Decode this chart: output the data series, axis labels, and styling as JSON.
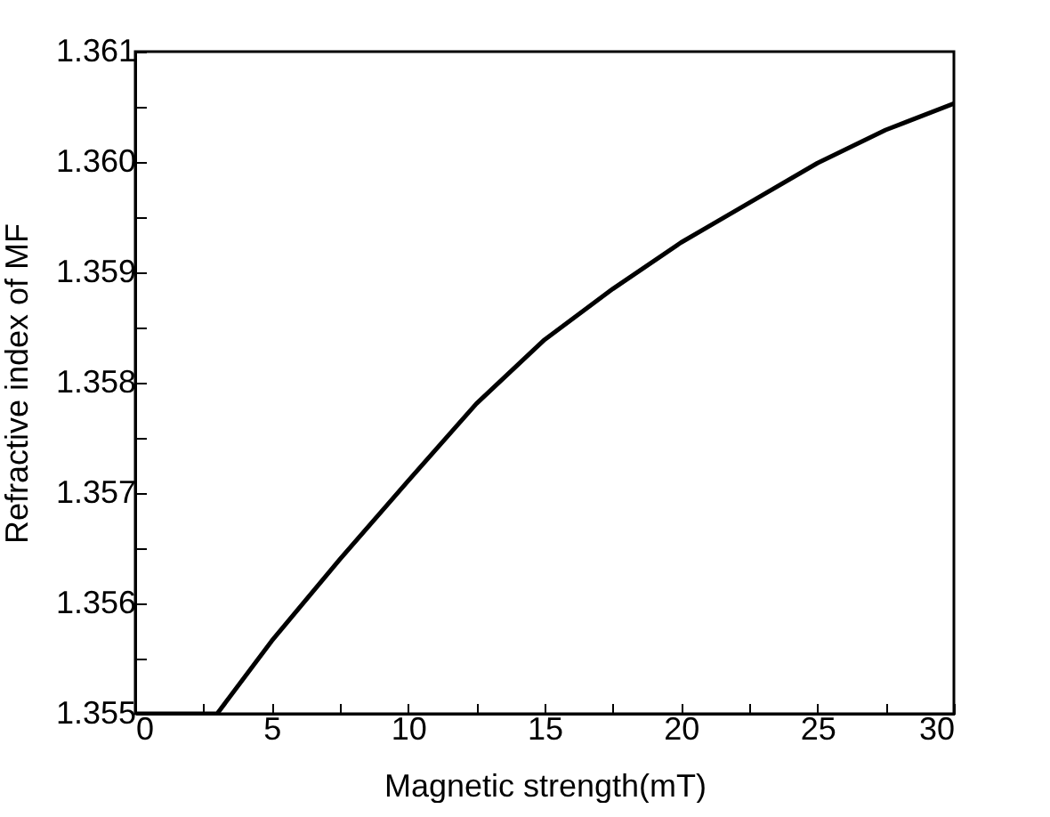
{
  "chart_data": {
    "type": "line",
    "xlabel": "Magnetic strength(mT)",
    "ylabel": "Refractive index of MF",
    "x": [
      0,
      1.5,
      3,
      5,
      7.5,
      10,
      12.5,
      15,
      17.5,
      20,
      22.5,
      25,
      27.5,
      30
    ],
    "series": [
      {
        "color": "#000000",
        "values": [
          1.355,
          1.355,
          1.355,
          1.35566,
          1.3564,
          1.35711,
          1.35781,
          1.35839,
          1.35885,
          1.35927,
          1.35963,
          1.35999,
          1.36029,
          1.36053
        ]
      }
    ],
    "xlim": [
      0,
      30
    ],
    "ylim": [
      1.355,
      1.361
    ],
    "xticks": [
      0,
      {
        "value": 2.5,
        "label": null
      },
      5,
      {
        "value": 7.5,
        "label": null
      },
      10,
      {
        "value": 12.5,
        "label": null
      },
      15,
      {
        "value": 17.5,
        "label": null
      },
      20,
      {
        "value": 22.5,
        "label": null
      },
      25,
      {
        "value": 27.5,
        "label": null
      },
      30
    ],
    "yticks": [
      {
        "value": 1.355,
        "label": "1.355"
      },
      {
        "value": 1.3555,
        "label": null
      },
      {
        "value": 1.356,
        "label": "1.356"
      },
      {
        "value": 1.3565,
        "label": null
      },
      {
        "value": 1.357,
        "label": "1.357"
      },
      {
        "value": 1.3575,
        "label": null
      },
      {
        "value": 1.358,
        "label": "1.358"
      },
      {
        "value": 1.3585,
        "label": null
      },
      {
        "value": 1.359,
        "label": "1.359"
      },
      {
        "value": 1.3595,
        "label": null
      },
      {
        "value": 1.36,
        "label": "1.360"
      },
      {
        "value": 1.3605,
        "label": null
      },
      {
        "value": 1.361,
        "label": "1.361"
      }
    ],
    "grid": false,
    "marker": "none",
    "line_style": "solid"
  }
}
